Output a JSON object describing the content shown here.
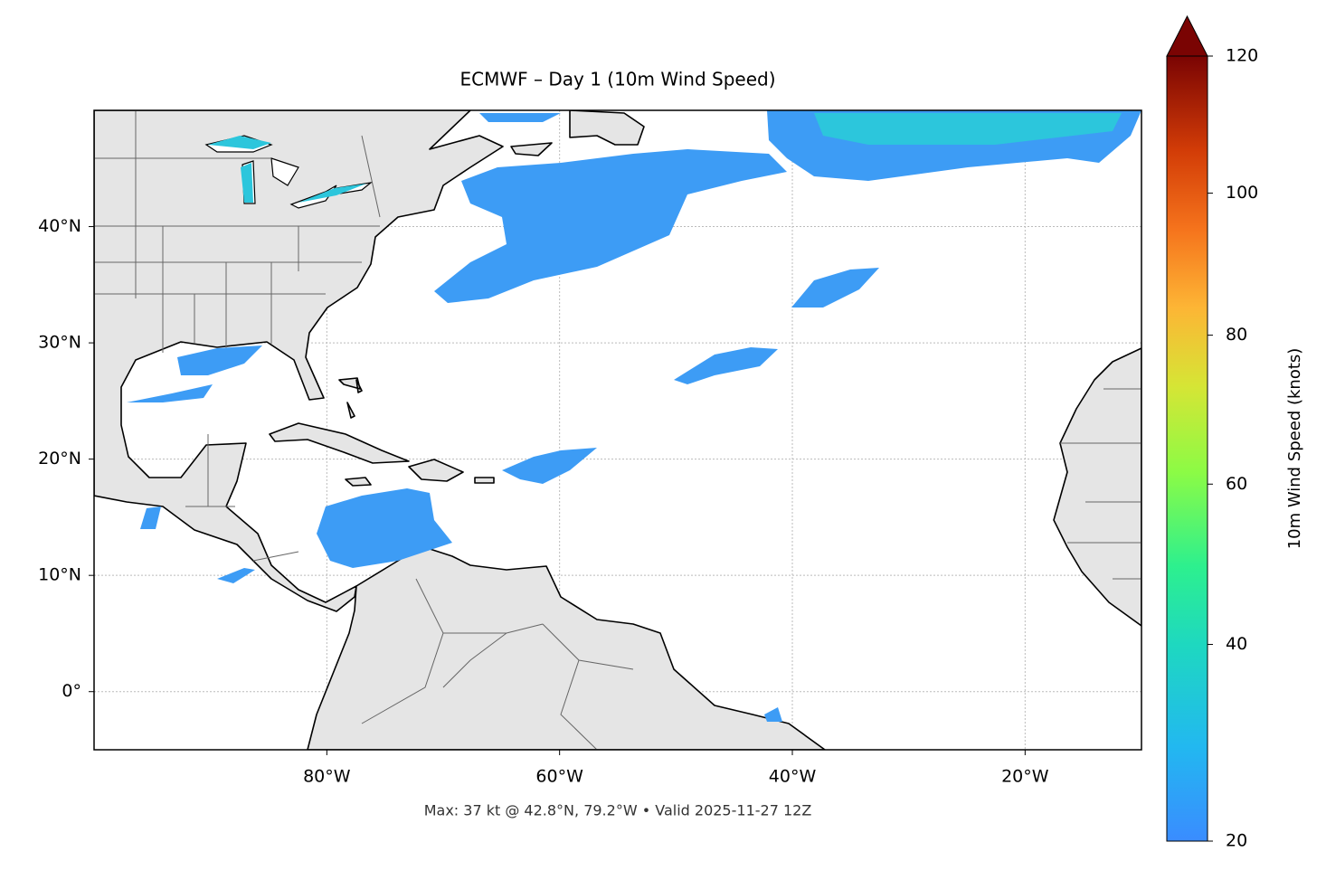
{
  "map": {
    "title": "ECMWF – Day 1 (10m Wind Speed)",
    "lonlim": [
      -100,
      -10
    ],
    "latlim": [
      -5,
      50
    ],
    "lon_ticks": [
      {
        "value": -80,
        "label": "80°W"
      },
      {
        "value": -60,
        "label": "60°W"
      },
      {
        "value": -40,
        "label": "40°W"
      },
      {
        "value": -20,
        "label": "20°W"
      }
    ],
    "lat_ticks": [
      {
        "value": 0,
        "label": "0°"
      },
      {
        "value": 10,
        "label": "10°N"
      },
      {
        "value": 20,
        "label": "20°N"
      },
      {
        "value": 30,
        "label": "30°N"
      },
      {
        "value": 40,
        "label": "40°N"
      }
    ],
    "grid": true,
    "footer": "Max: 37 kt @ 42.8°N, 79.2°W • Valid 2025-11-27 12Z",
    "colorbar": {
      "label": "10m Wind Speed (knots)",
      "range": [
        20,
        120
      ],
      "gamma": 0.86,
      "ticks": [
        20,
        40,
        60,
        80,
        100,
        120
      ]
    }
  }
}
